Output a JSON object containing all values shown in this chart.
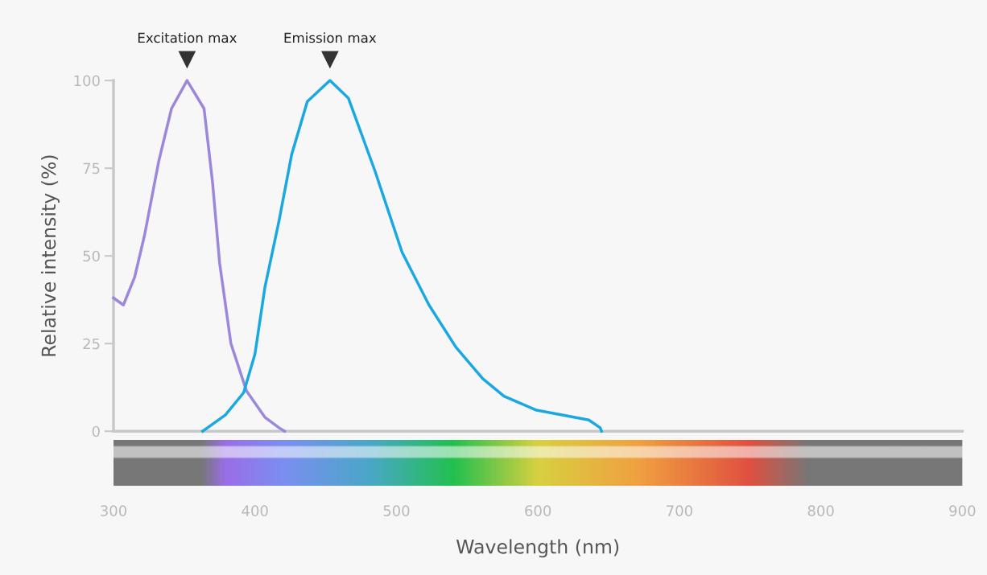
{
  "chart_data": {
    "type": "line",
    "xlabel": "Wavelength (nm)",
    "ylabel": "Relative intensity (%)",
    "xlim": [
      300,
      900
    ],
    "xticks": [
      300,
      400,
      500,
      600,
      700,
      800,
      900
    ],
    "ylim": [
      0,
      100
    ],
    "yticks": [
      0,
      25,
      50,
      75,
      100
    ],
    "grid": false,
    "marker": "none",
    "line_style": "solid",
    "annotations": [
      {
        "text": "Excitation max",
        "x": 352,
        "y": 100
      },
      {
        "text": "Emission max",
        "x": 453,
        "y": 100
      }
    ],
    "series": [
      {
        "color": "#9b87dc",
        "x": [
          300,
          307,
          315,
          322,
          332,
          341,
          352,
          364,
          370,
          375,
          383,
          394,
          407,
          417,
          421
        ],
        "values": [
          38,
          36,
          44,
          56,
          77,
          92,
          100,
          92,
          71,
          48,
          25,
          11.5,
          4,
          1,
          0
        ]
      },
      {
        "color": "#1aa8e2",
        "x": [
          363,
          379,
          392,
          400,
          407,
          417,
          426,
          437,
          453,
          466,
          485,
          504,
          523,
          542,
          561,
          576,
          599,
          636,
          644,
          645
        ],
        "values": [
          0,
          4.6,
          11,
          22,
          41,
          60,
          79,
          94,
          100,
          95,
          74,
          51,
          36,
          24,
          15,
          10,
          6,
          3.2,
          1,
          0
        ]
      }
    ]
  }
}
